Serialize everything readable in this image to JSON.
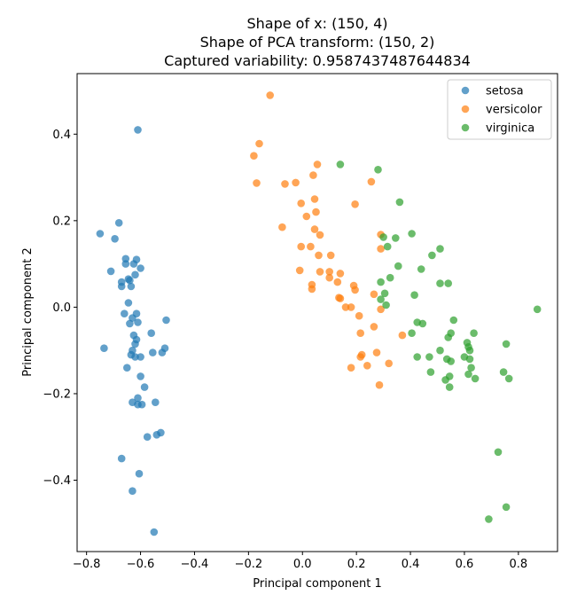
{
  "chart_data": {
    "type": "scatter",
    "title_lines": [
      "Shape of x: (150, 4)",
      "Shape of PCA transform: (150, 2)",
      "Captured variability: 0.9587437487644834"
    ],
    "xlabel": "Principal component 1",
    "ylabel": "Principal component 2",
    "xlim": [
      -0.835,
      0.945
    ],
    "ylim": [
      -0.565,
      0.54
    ],
    "xticks": [
      -0.8,
      -0.6,
      -0.4,
      -0.2,
      0.0,
      0.2,
      0.4,
      0.6,
      0.8
    ],
    "yticks": [
      -0.4,
      -0.2,
      0.0,
      0.2,
      0.4
    ],
    "xtick_labels": [
      "−0.8",
      "−0.6",
      "−0.4",
      "−0.2",
      "0.0",
      "0.2",
      "0.4",
      "0.6",
      "0.8"
    ],
    "ytick_labels": [
      "−0.4",
      "−0.2",
      "0.0",
      "0.2",
      "0.4"
    ],
    "grid": false,
    "legend_position": "top-right",
    "series": [
      {
        "name": "setosa",
        "color": "#1f77b4",
        "points": [
          [
            -0.61,
            0.41
          ],
          [
            -0.75,
            0.17
          ],
          [
            -0.68,
            0.195
          ],
          [
            -0.695,
            0.158
          ],
          [
            -0.655,
            0.112
          ],
          [
            -0.615,
            0.11
          ],
          [
            -0.71,
            0.083
          ],
          [
            -0.655,
            0.1
          ],
          [
            -0.625,
            0.1
          ],
          [
            -0.6,
            0.09
          ],
          [
            -0.62,
            0.075
          ],
          [
            -0.67,
            0.058
          ],
          [
            -0.645,
            0.065
          ],
          [
            -0.64,
            0.062
          ],
          [
            -0.67,
            0.048
          ],
          [
            -0.635,
            0.048
          ],
          [
            -0.645,
            0.01
          ],
          [
            -0.66,
            -0.015
          ],
          [
            -0.615,
            -0.015
          ],
          [
            -0.63,
            -0.025
          ],
          [
            -0.505,
            -0.03
          ],
          [
            -0.64,
            -0.038
          ],
          [
            -0.61,
            -0.035
          ],
          [
            -0.625,
            -0.065
          ],
          [
            -0.56,
            -0.06
          ],
          [
            -0.615,
            -0.075
          ],
          [
            -0.62,
            -0.085
          ],
          [
            -0.735,
            -0.095
          ],
          [
            -0.51,
            -0.095
          ],
          [
            -0.555,
            -0.105
          ],
          [
            -0.52,
            -0.105
          ],
          [
            -0.63,
            -0.1
          ],
          [
            -0.62,
            -0.115
          ],
          [
            -0.6,
            -0.115
          ],
          [
            -0.635,
            -0.11
          ],
          [
            -0.65,
            -0.14
          ],
          [
            -0.6,
            -0.16
          ],
          [
            -0.585,
            -0.185
          ],
          [
            -0.61,
            -0.21
          ],
          [
            -0.63,
            -0.22
          ],
          [
            -0.61,
            -0.225
          ],
          [
            -0.595,
            -0.225
          ],
          [
            -0.545,
            -0.22
          ],
          [
            -0.575,
            -0.3
          ],
          [
            -0.54,
            -0.295
          ],
          [
            -0.525,
            -0.29
          ],
          [
            -0.67,
            -0.35
          ],
          [
            -0.605,
            -0.385
          ],
          [
            -0.63,
            -0.425
          ],
          [
            -0.55,
            -0.52
          ]
        ]
      },
      {
        "name": "versicolor",
        "color": "#ff7f0e",
        "points": [
          [
            -0.12,
            0.49
          ],
          [
            -0.16,
            0.378
          ],
          [
            -0.18,
            0.35
          ],
          [
            -0.17,
            0.287
          ],
          [
            0.055,
            0.33
          ],
          [
            0.04,
            0.305
          ],
          [
            -0.065,
            0.285
          ],
          [
            -0.025,
            0.288
          ],
          [
            0.255,
            0.29
          ],
          [
            0.045,
            0.25
          ],
          [
            -0.005,
            0.24
          ],
          [
            0.195,
            0.238
          ],
          [
            0.05,
            0.22
          ],
          [
            0.015,
            0.21
          ],
          [
            -0.075,
            0.185
          ],
          [
            0.045,
            0.18
          ],
          [
            0.065,
            0.167
          ],
          [
            0.29,
            0.168
          ],
          [
            -0.005,
            0.14
          ],
          [
            0.03,
            0.14
          ],
          [
            0.06,
            0.12
          ],
          [
            0.105,
            0.12
          ],
          [
            0.29,
            0.135
          ],
          [
            -0.01,
            0.085
          ],
          [
            0.065,
            0.082
          ],
          [
            0.1,
            0.082
          ],
          [
            0.14,
            0.078
          ],
          [
            0.1,
            0.068
          ],
          [
            0.13,
            0.058
          ],
          [
            0.035,
            0.052
          ],
          [
            0.035,
            0.042
          ],
          [
            0.19,
            0.05
          ],
          [
            0.195,
            0.04
          ],
          [
            0.135,
            0.022
          ],
          [
            0.14,
            0.02
          ],
          [
            0.265,
            0.03
          ],
          [
            0.16,
            0.0
          ],
          [
            0.18,
            0.0
          ],
          [
            0.29,
            -0.005
          ],
          [
            0.21,
            -0.02
          ],
          [
            0.265,
            -0.045
          ],
          [
            0.215,
            -0.06
          ],
          [
            0.37,
            -0.065
          ],
          [
            0.22,
            -0.11
          ],
          [
            0.215,
            -0.115
          ],
          [
            0.275,
            -0.105
          ],
          [
            0.32,
            -0.13
          ],
          [
            0.18,
            -0.14
          ],
          [
            0.24,
            -0.135
          ],
          [
            0.285,
            -0.18
          ]
        ]
      },
      {
        "name": "virginica",
        "color": "#2ca02c",
        "points": [
          [
            0.14,
            0.33
          ],
          [
            0.28,
            0.318
          ],
          [
            0.36,
            0.243
          ],
          [
            0.405,
            0.17
          ],
          [
            0.3,
            0.162
          ],
          [
            0.345,
            0.16
          ],
          [
            0.315,
            0.14
          ],
          [
            0.51,
            0.135
          ],
          [
            0.48,
            0.12
          ],
          [
            0.355,
            0.095
          ],
          [
            0.44,
            0.088
          ],
          [
            0.325,
            0.068
          ],
          [
            0.29,
            0.058
          ],
          [
            0.51,
            0.055
          ],
          [
            0.54,
            0.055
          ],
          [
            0.305,
            0.032
          ],
          [
            0.415,
            0.028
          ],
          [
            0.29,
            0.018
          ],
          [
            0.31,
            0.005
          ],
          [
            0.56,
            -0.03
          ],
          [
            0.425,
            -0.035
          ],
          [
            0.445,
            -0.038
          ],
          [
            0.405,
            -0.06
          ],
          [
            0.55,
            -0.06
          ],
          [
            0.635,
            -0.06
          ],
          [
            0.54,
            -0.07
          ],
          [
            0.87,
            -0.005
          ],
          [
            0.61,
            -0.082
          ],
          [
            0.615,
            -0.092
          ],
          [
            0.62,
            -0.1
          ],
          [
            0.755,
            -0.085
          ],
          [
            0.51,
            -0.1
          ],
          [
            0.47,
            -0.115
          ],
          [
            0.425,
            -0.115
          ],
          [
            0.535,
            -0.12
          ],
          [
            0.55,
            -0.125
          ],
          [
            0.62,
            -0.12
          ],
          [
            0.625,
            -0.14
          ],
          [
            0.475,
            -0.15
          ],
          [
            0.615,
            -0.155
          ],
          [
            0.745,
            -0.15
          ],
          [
            0.545,
            -0.16
          ],
          [
            0.53,
            -0.168
          ],
          [
            0.64,
            -0.165
          ],
          [
            0.765,
            -0.165
          ],
          [
            0.545,
            -0.185
          ],
          [
            0.725,
            -0.335
          ],
          [
            0.755,
            -0.462
          ],
          [
            0.69,
            -0.49
          ],
          [
            0.6,
            -0.115
          ]
        ]
      }
    ]
  }
}
